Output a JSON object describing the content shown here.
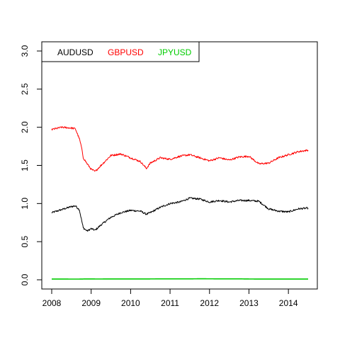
{
  "chart_data": {
    "type": "line",
    "title": "",
    "xlabel": "",
    "ylabel": "",
    "x_tick_labels": [
      "2008",
      "2009",
      "2010",
      "2011",
      "2012",
      "2013",
      "2014"
    ],
    "y_tick_labels": [
      "0.0",
      "0.5",
      "1.0",
      "1.5",
      "2.0",
      "2.5",
      "3.0"
    ],
    "xlim": [
      2008.0,
      2014.5
    ],
    "ylim": [
      0.0,
      3.0
    ],
    "grid": false,
    "legend_position": "top-left",
    "x": [
      2008.0,
      2008.25,
      2008.5,
      2008.6,
      2008.7,
      2008.75,
      2008.8,
      2008.9,
      2009.0,
      2009.1,
      2009.25,
      2009.5,
      2009.75,
      2010.0,
      2010.25,
      2010.4,
      2010.5,
      2010.75,
      2011.0,
      2011.25,
      2011.5,
      2011.75,
      2012.0,
      2012.25,
      2012.5,
      2012.75,
      2013.0,
      2013.25,
      2013.5,
      2013.75,
      2014.0,
      2014.25,
      2014.5
    ],
    "series": [
      {
        "name": "AUDUSD",
        "color": "#000000",
        "values": [
          0.88,
          0.92,
          0.96,
          0.97,
          0.92,
          0.8,
          0.68,
          0.64,
          0.67,
          0.65,
          0.72,
          0.82,
          0.88,
          0.91,
          0.9,
          0.86,
          0.88,
          0.95,
          1.0,
          1.02,
          1.07,
          1.06,
          1.02,
          1.04,
          1.02,
          1.04,
          1.04,
          1.03,
          0.93,
          0.9,
          0.89,
          0.93,
          0.94
        ]
      },
      {
        "name": "GBPUSD",
        "color": "#ff0000",
        "values": [
          1.97,
          2.0,
          1.99,
          1.98,
          1.85,
          1.75,
          1.6,
          1.52,
          1.45,
          1.42,
          1.5,
          1.63,
          1.65,
          1.6,
          1.55,
          1.46,
          1.53,
          1.6,
          1.58,
          1.62,
          1.64,
          1.6,
          1.56,
          1.6,
          1.57,
          1.61,
          1.62,
          1.52,
          1.53,
          1.6,
          1.64,
          1.68,
          1.7
        ]
      },
      {
        "name": "JPYUSD",
        "color": "#00cc00",
        "values": [
          0.0095,
          0.0097,
          0.0093,
          0.0093,
          0.0094,
          0.0098,
          0.0105,
          0.011,
          0.011,
          0.0105,
          0.0105,
          0.0107,
          0.011,
          0.0108,
          0.0107,
          0.0108,
          0.0115,
          0.012,
          0.012,
          0.0122,
          0.0125,
          0.013,
          0.0128,
          0.0125,
          0.0125,
          0.0123,
          0.0105,
          0.0102,
          0.01,
          0.0099,
          0.0097,
          0.0098,
          0.0098
        ]
      }
    ]
  }
}
